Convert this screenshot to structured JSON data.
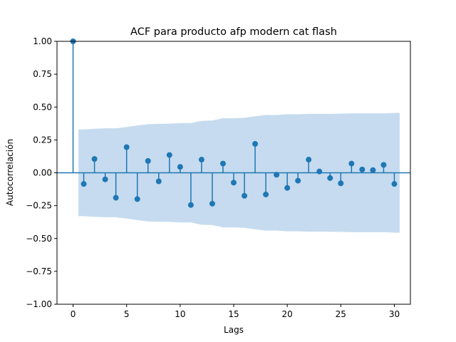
{
  "chart_data": {
    "type": "scatter",
    "title": "ACF para producto afp modern cat flash",
    "xlabel": "Lags",
    "ylabel": "Autocorrelación",
    "xlim": [
      -1.5,
      31.5
    ],
    "ylim": [
      -1.0,
      1.0
    ],
    "xticks": [
      0,
      5,
      10,
      15,
      20,
      25,
      30
    ],
    "xtick_labels": [
      "0",
      "5",
      "10",
      "15",
      "20",
      "25",
      "30"
    ],
    "yticks": [
      -1.0,
      -0.75,
      -0.5,
      -0.25,
      0.0,
      0.25,
      0.5,
      0.75,
      1.0
    ],
    "ytick_labels": [
      "−1.00",
      "−0.75",
      "−0.50",
      "−0.25",
      "0.00",
      "0.25",
      "0.50",
      "0.75",
      "1.00"
    ],
    "grid": false,
    "colors": {
      "stem": "#1f77b4",
      "band": "#c6dbef"
    },
    "lags": [
      0,
      1,
      2,
      3,
      4,
      5,
      6,
      7,
      8,
      9,
      10,
      11,
      12,
      13,
      14,
      15,
      16,
      17,
      18,
      19,
      20,
      21,
      22,
      23,
      24,
      25,
      26,
      27,
      28,
      29,
      30
    ],
    "acf": [
      1.0,
      -0.085,
      0.105,
      -0.05,
      -0.19,
      0.195,
      -0.2,
      0.09,
      -0.065,
      0.135,
      0.045,
      -0.245,
      0.1,
      -0.235,
      0.07,
      -0.075,
      -0.175,
      0.22,
      -0.165,
      -0.015,
      -0.115,
      -0.06,
      0.1,
      0.01,
      -0.04,
      -0.08,
      0.07,
      0.025,
      0.02,
      0.06,
      -0.085
    ],
    "confidence_band": {
      "x": [
        0.5,
        1,
        2,
        3,
        4,
        5,
        6,
        7,
        8,
        9,
        10,
        11,
        12,
        13,
        14,
        15,
        16,
        17,
        18,
        19,
        20,
        21,
        22,
        23,
        24,
        25,
        26,
        27,
        28,
        29,
        30,
        30.5
      ],
      "upper": [
        0.33,
        0.33,
        0.335,
        0.338,
        0.338,
        0.348,
        0.36,
        0.37,
        0.372,
        0.373,
        0.378,
        0.378,
        0.395,
        0.398,
        0.415,
        0.415,
        0.418,
        0.43,
        0.44,
        0.44,
        0.445,
        0.445,
        0.448,
        0.448,
        0.448,
        0.45,
        0.452,
        0.452,
        0.452,
        0.452,
        0.455,
        0.455
      ]
    }
  }
}
